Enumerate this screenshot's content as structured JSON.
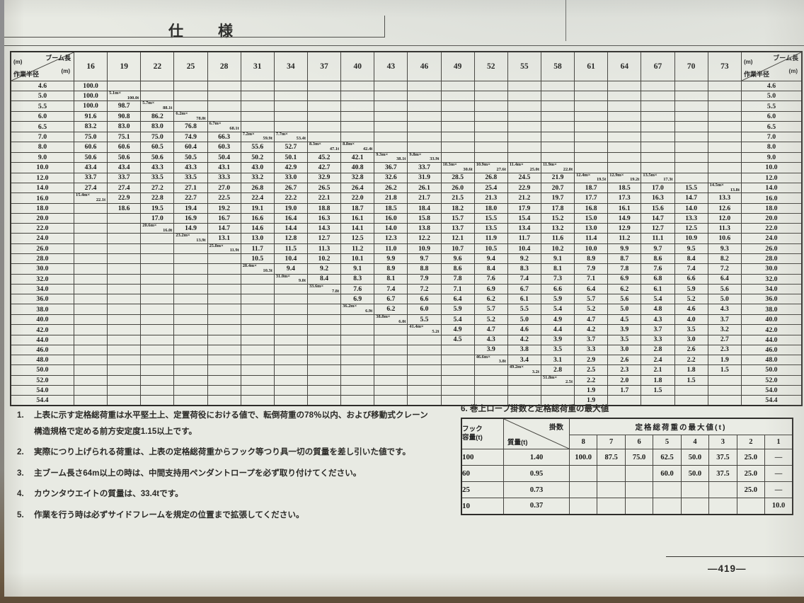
{
  "page": {
    "title": "仕　様",
    "page_number": "—419—"
  },
  "main_table": {
    "corner": {
      "boom_label": "ブーム長",
      "radius_label": "作業半径",
      "unit": "(m)"
    },
    "boom_lengths": [
      "16",
      "19",
      "22",
      "25",
      "28",
      "31",
      "34",
      "37",
      "40",
      "43",
      "46",
      "49",
      "52",
      "55",
      "58",
      "61",
      "64",
      "67",
      "70",
      "73"
    ],
    "rows": [
      {
        "r": "4.6",
        "c": [
          "100.0",
          "",
          "",
          "",
          "",
          "",
          "",
          "",
          "",
          "",
          "",
          "",
          "",
          "",
          "",
          "",
          "",
          "",
          "",
          ""
        ]
      },
      {
        "r": "5.0",
        "c": [
          "100.0",
          "5.1m×|100.0t",
          "",
          "",
          "",
          "",
          "",
          "",
          "",
          "",
          "",
          "",
          "",
          "",
          "",
          "",
          "",
          "",
          "",
          ""
        ]
      },
      {
        "r": "5.5",
        "c": [
          "100.0",
          "98.7",
          "5.7m×|88.1t",
          "",
          "",
          "",
          "",
          "",
          "",
          "",
          "",
          "",
          "",
          "",
          "",
          "",
          "",
          "",
          "",
          ""
        ]
      },
      {
        "r": "6.0",
        "c": [
          "91.6",
          "90.8",
          "86.2",
          "6.2m×|78.0t",
          "",
          "",
          "",
          "",
          "",
          "",
          "",
          "",
          "",
          "",
          "",
          "",
          "",
          "",
          "",
          ""
        ]
      },
      {
        "r": "6.5",
        "c": [
          "83.2",
          "83.0",
          "83.0",
          "76.8",
          "6.7m×|68.1t",
          "",
          "",
          "",
          "",
          "",
          "",
          "",
          "",
          "",
          "",
          "",
          "",
          "",
          "",
          ""
        ]
      },
      {
        "r": "7.0",
        "c": [
          "75.0",
          "75.1",
          "75.0",
          "74.9",
          "66.3",
          "7.2m×|59.9t",
          "7.7m×|53.4t",
          "",
          "",
          "",
          "",
          "",
          "",
          "",
          "",
          "",
          "",
          "",
          "",
          ""
        ]
      },
      {
        "r": "8.0",
        "c": [
          "60.6",
          "60.6",
          "60.5",
          "60.4",
          "60.3",
          "55.6",
          "52.7",
          "8.3m×|47.1t",
          "8.8m×|42.4t",
          "",
          "",
          "",
          "",
          "",
          "",
          "",
          "",
          "",
          "",
          ""
        ]
      },
      {
        "r": "9.0",
        "c": [
          "50.6",
          "50.6",
          "50.6",
          "50.5",
          "50.4",
          "50.2",
          "50.1",
          "45.2",
          "42.1",
          "9.3m×|38.1t",
          "9.8m×|33.9t",
          "",
          "",
          "",
          "",
          "",
          "",
          "",
          "",
          ""
        ]
      },
      {
        "r": "10.0",
        "c": [
          "43.4",
          "43.4",
          "43.3",
          "43.3",
          "43.1",
          "43.0",
          "42.9",
          "42.7",
          "40.8",
          "36.7",
          "33.7",
          "10.3m×|30.6t",
          "10.9m×|27.6t",
          "11.4m×|25.0t",
          "11.9m×|22.0t",
          "",
          "",
          "",
          "",
          ""
        ]
      },
      {
        "r": "12.0",
        "c": [
          "33.7",
          "33.7",
          "33.5",
          "33.5",
          "33.3",
          "33.2",
          "33.0",
          "32.9",
          "32.8",
          "32.6",
          "31.9",
          "28.5",
          "26.8",
          "24.5",
          "21.9",
          "12.4m×|19.5t",
          "12.9m×|19.2t",
          "13.5m×|17.3t",
          "",
          ""
        ]
      },
      {
        "r": "14.0",
        "c": [
          "27.4",
          "27.4",
          "27.2",
          "27.1",
          "27.0",
          "26.8",
          "26.7",
          "26.5",
          "26.4",
          "26.2",
          "26.1",
          "26.0",
          "25.4",
          "22.9",
          "20.7",
          "18.7",
          "18.5",
          "17.0",
          "15.5",
          "14.5m×|13.8t"
        ]
      },
      {
        "r": "16.0",
        "c": [
          "15.4m×|22.1t",
          "22.9",
          "22.8",
          "22.7",
          "22.5",
          "22.4",
          "22.2",
          "22.1",
          "22.0",
          "21.8",
          "21.7",
          "21.5",
          "21.3",
          "21.2",
          "19.7",
          "17.7",
          "17.3",
          "16.3",
          "14.7",
          "13.3"
        ]
      },
      {
        "r": "18.0",
        "c": [
          "",
          "18.6",
          "19.5",
          "19.4",
          "19.2",
          "19.1",
          "19.0",
          "18.8",
          "18.7",
          "18.5",
          "18.4",
          "18.2",
          "18.0",
          "17.9",
          "17.8",
          "16.8",
          "16.1",
          "15.6",
          "14.0",
          "12.6"
        ]
      },
      {
        "r": "20.0",
        "c": [
          "",
          "",
          "17.0",
          "16.9",
          "16.7",
          "16.6",
          "16.4",
          "16.3",
          "16.1",
          "16.0",
          "15.8",
          "15.7",
          "15.5",
          "15.4",
          "15.2",
          "15.0",
          "14.9",
          "14.7",
          "13.3",
          "12.0"
        ]
      },
      {
        "r": "22.0",
        "c": [
          "",
          "",
          "20.6m×|16.0t",
          "14.9",
          "14.7",
          "14.6",
          "14.4",
          "14.3",
          "14.1",
          "14.0",
          "13.8",
          "13.7",
          "13.5",
          "13.4",
          "13.2",
          "13.0",
          "12.9",
          "12.7",
          "12.5",
          "11.3"
        ]
      },
      {
        "r": "24.0",
        "c": [
          "",
          "",
          "",
          "23.2m×|13.9t",
          "13.1",
          "13.0",
          "12.8",
          "12.7",
          "12.5",
          "12.3",
          "12.2",
          "12.1",
          "11.9",
          "11.7",
          "11.6",
          "11.4",
          "11.2",
          "11.1",
          "10.9",
          "10.6"
        ]
      },
      {
        "r": "26.0",
        "c": [
          "",
          "",
          "",
          "",
          "25.8m×|11.9t",
          "11.7",
          "11.5",
          "11.3",
          "11.2",
          "11.0",
          "10.9",
          "10.7",
          "10.5",
          "10.4",
          "10.2",
          "10.0",
          "9.9",
          "9.7",
          "9.5",
          "9.3"
        ]
      },
      {
        "r": "28.0",
        "c": [
          "",
          "",
          "",
          "",
          "",
          "10.5",
          "10.4",
          "10.2",
          "10.1",
          "9.9",
          "9.7",
          "9.6",
          "9.4",
          "9.2",
          "9.1",
          "8.9",
          "8.7",
          "8.6",
          "8.4",
          "8.2"
        ]
      },
      {
        "r": "30.0",
        "c": [
          "",
          "",
          "",
          "",
          "",
          "28.4m×|10.3t",
          "9.4",
          "9.2",
          "9.1",
          "8.9",
          "8.8",
          "8.6",
          "8.4",
          "8.3",
          "8.1",
          "7.9",
          "7.8",
          "7.6",
          "7.4",
          "7.2"
        ]
      },
      {
        "r": "32.0",
        "c": [
          "",
          "",
          "",
          "",
          "",
          "",
          "31.0m×|9.0t",
          "8.4",
          "8.3",
          "8.1",
          "7.9",
          "7.8",
          "7.6",
          "7.4",
          "7.3",
          "7.1",
          "6.9",
          "6.8",
          "6.6",
          "6.4"
        ]
      },
      {
        "r": "34.0",
        "c": [
          "",
          "",
          "",
          "",
          "",
          "",
          "",
          "33.6m×|7.8t",
          "7.6",
          "7.4",
          "7.2",
          "7.1",
          "6.9",
          "6.7",
          "6.6",
          "6.4",
          "6.2",
          "6.1",
          "5.9",
          "5.6"
        ]
      },
      {
        "r": "36.0",
        "c": [
          "",
          "",
          "",
          "",
          "",
          "",
          "",
          "",
          "6.9",
          "6.7",
          "6.6",
          "6.4",
          "6.2",
          "6.1",
          "5.9",
          "5.7",
          "5.6",
          "5.4",
          "5.2",
          "5.0"
        ]
      },
      {
        "r": "38.0",
        "c": [
          "",
          "",
          "",
          "",
          "",
          "",
          "",
          "",
          "36.2m×|6.9t",
          "6.2",
          "6.0",
          "5.9",
          "5.7",
          "5.5",
          "5.4",
          "5.2",
          "5.0",
          "4.8",
          "4.6",
          "4.3"
        ]
      },
      {
        "r": "40.0",
        "c": [
          "",
          "",
          "",
          "",
          "",
          "",
          "",
          "",
          "",
          "38.8m×|6.0t",
          "5.5",
          "5.4",
          "5.2",
          "5.0",
          "4.9",
          "4.7",
          "4.5",
          "4.3",
          "4.0",
          "3.7"
        ]
      },
      {
        "r": "42.0",
        "c": [
          "",
          "",
          "",
          "",
          "",
          "",
          "",
          "",
          "",
          "",
          "41.4m×|5.2t",
          "4.9",
          "4.7",
          "4.6",
          "4.4",
          "4.2",
          "3.9",
          "3.7",
          "3.5",
          "3.2"
        ]
      },
      {
        "r": "44.0",
        "c": [
          "",
          "",
          "",
          "",
          "",
          "",
          "",
          "",
          "",
          "",
          "",
          "4.5",
          "4.3",
          "4.2",
          "3.9",
          "3.7",
          "3.5",
          "3.3",
          "3.0",
          "2.7"
        ]
      },
      {
        "r": "46.0",
        "c": [
          "",
          "",
          "",
          "",
          "",
          "",
          "",
          "",
          "",
          "",
          "",
          "",
          "3.9",
          "3.8",
          "3.5",
          "3.3",
          "3.0",
          "2.8",
          "2.6",
          "2.3"
        ]
      },
      {
        "r": "48.0",
        "c": [
          "",
          "",
          "",
          "",
          "",
          "",
          "",
          "",
          "",
          "",
          "",
          "",
          "46.6m×|3.8t",
          "3.4",
          "3.1",
          "2.9",
          "2.6",
          "2.4",
          "2.2",
          "1.9"
        ]
      },
      {
        "r": "50.0",
        "c": [
          "",
          "",
          "",
          "",
          "",
          "",
          "",
          "",
          "",
          "",
          "",
          "",
          "",
          "49.2m×|3.2t",
          "2.8",
          "2.5",
          "2.3",
          "2.1",
          "1.8",
          "1.5"
        ]
      },
      {
        "r": "52.0",
        "c": [
          "",
          "",
          "",
          "",
          "",
          "",
          "",
          "",
          "",
          "",
          "",
          "",
          "",
          "",
          "51.8m×|2.5t",
          "2.2",
          "2.0",
          "1.8",
          "1.5",
          ""
        ]
      },
      {
        "r": "54.0",
        "c": [
          "",
          "",
          "",
          "",
          "",
          "",
          "",
          "",
          "",
          "",
          "",
          "",
          "",
          "",
          "",
          "1.9",
          "1.7",
          "1.5",
          "",
          ""
        ]
      },
      {
        "r": "54.4",
        "c": [
          "",
          "",
          "",
          "",
          "",
          "",
          "",
          "",
          "",
          "",
          "",
          "",
          "",
          "",
          "",
          "1.9",
          "",
          "",
          "",
          ""
        ]
      }
    ]
  },
  "notes": [
    {
      "num": "1.",
      "lines": [
        "上表に示す定格総荷重は水平堅土上、定置荷役における値で、転倒荷重の78％以内、および移動式クレーン",
        "構造規格で定める前方安定度1.15以上です。"
      ]
    },
    {
      "num": "2.",
      "lines": [
        "実際につり上げられる荷重は、上表の定格総荷重からフック等つり具一切の質量を差し引いた値です。"
      ]
    },
    {
      "num": "3.",
      "lines": [
        "主ブーム長さ64m以上の時は、中間支持用ペンダントロープを必ず取り付けてください。"
      ]
    },
    {
      "num": "4.",
      "lines": [
        "カウンタウエイトの質量は、33.4tです。"
      ]
    },
    {
      "num": "5.",
      "lines": [
        "作業を行う時は必ずサイドフレームを規定の位置まで拡張してください。"
      ]
    }
  ],
  "section6": {
    "title": "6. 巻上ロープ掛数と定格総荷重の最大値",
    "hook_table": {
      "hook_label_line1": "フック",
      "hook_label_line2": "容量(t)",
      "falls_label": "掛数",
      "mass_label": "質量(t)",
      "span_label": "定格総荷重の最大値(t)",
      "falls_counts": [
        "8",
        "7",
        "6",
        "5",
        "4",
        "3",
        "2",
        "1"
      ],
      "rows": [
        {
          "hook": "100",
          "mass": "1.40",
          "values": [
            "100.0",
            "87.5",
            "75.0",
            "62.5",
            "50.0",
            "37.5",
            "25.0",
            "—"
          ]
        },
        {
          "hook": "60",
          "mass": "0.95",
          "values": [
            "",
            "",
            "",
            "60.0",
            "50.0",
            "37.5",
            "25.0",
            "—"
          ]
        },
        {
          "hook": "25",
          "mass": "0.73",
          "values": [
            "",
            "",
            "",
            "",
            "",
            "",
            "25.0",
            "—"
          ]
        },
        {
          "hook": "10",
          "mass": "0.37",
          "values": [
            "",
            "",
            "",
            "",
            "",
            "",
            "",
            "10.0"
          ]
        }
      ]
    }
  }
}
